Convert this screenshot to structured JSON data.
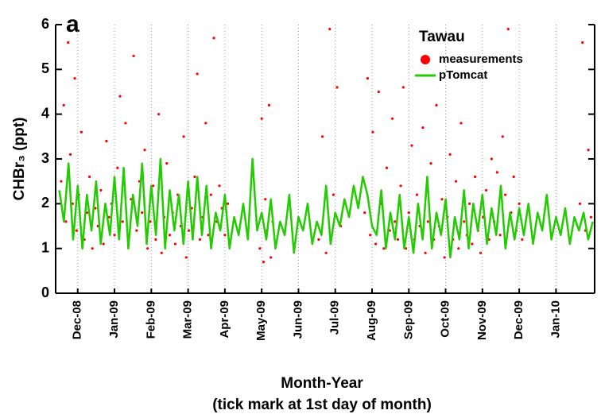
{
  "chart_data": {
    "type": "scatter",
    "panel_label": "a",
    "x_label": "Month-Year",
    "x_label_note": "(tick mark at 1st day of month)",
    "y_label": "CHBr₃ (ppt)",
    "legend_title": "Tawau",
    "legend": "upper right",
    "grid": true,
    "xlim": [
      0.4,
      15.05
    ],
    "ylim": [
      0,
      6
    ],
    "yticks": [
      0,
      1,
      2,
      3,
      4,
      5,
      6
    ],
    "xticks": [
      {
        "value": 1,
        "label": "Dec-08"
      },
      {
        "value": 2,
        "label": "Jan-09"
      },
      {
        "value": 3,
        "label": "Feb-09"
      },
      {
        "value": 4,
        "label": "Mar-09"
      },
      {
        "value": 5,
        "label": "Apr-09"
      },
      {
        "value": 6,
        "label": "May-09"
      },
      {
        "value": 7,
        "label": "Jun-09"
      },
      {
        "value": 8,
        "label": "Jul-09"
      },
      {
        "value": 9,
        "label": "Aug-09"
      },
      {
        "value": 10,
        "label": "Sep-09"
      },
      {
        "value": 11,
        "label": "Oct-09"
      },
      {
        "value": 12,
        "label": "Nov-09"
      },
      {
        "value": 13,
        "label": "Dec-09"
      },
      {
        "value": 14,
        "label": "Jan-10"
      }
    ],
    "series": [
      {
        "name": "measurements",
        "type": "scatter",
        "color": "#ff0000",
        "x": [
          0.55,
          0.62,
          0.68,
          0.74,
          0.8,
          0.86,
          0.92,
          0.97,
          1.03,
          1.1,
          1.18,
          1.25,
          1.32,
          1.4,
          1.48,
          1.55,
          1.63,
          1.7,
          1.78,
          1.85,
          1.92,
          2.0,
          2.08,
          2.15,
          2.22,
          2.3,
          2.38,
          2.45,
          2.52,
          2.6,
          2.68,
          2.75,
          2.82,
          2.9,
          2.97,
          3.05,
          3.12,
          3.2,
          3.28,
          3.35,
          3.42,
          3.5,
          3.58,
          3.65,
          3.72,
          3.8,
          3.88,
          3.95,
          4.02,
          4.1,
          4.18,
          4.25,
          4.32,
          4.4,
          4.48,
          4.55,
          4.62,
          4.7,
          4.78,
          4.85,
          4.92,
          5.0,
          5.08,
          5.95,
          6.0,
          6.05,
          6.1,
          6.15,
          6.2,
          6.25,
          6.3,
          7.55,
          7.65,
          7.75,
          7.85,
          7.95,
          8.05,
          8.15,
          8.8,
          8.88,
          8.95,
          9.02,
          9.1,
          9.18,
          9.25,
          9.32,
          9.4,
          9.48,
          9.55,
          9.62,
          9.7,
          9.78,
          9.85,
          9.92,
          10.0,
          10.08,
          10.15,
          10.22,
          10.3,
          10.38,
          10.45,
          10.52,
          10.6,
          10.68,
          10.75,
          10.82,
          10.9,
          10.97,
          11.05,
          11.12,
          11.2,
          11.28,
          11.35,
          11.42,
          11.5,
          11.58,
          11.65,
          11.72,
          11.8,
          11.88,
          11.95,
          12.02,
          12.1,
          12.18,
          12.25,
          12.32,
          12.4,
          12.48,
          12.55,
          12.62,
          12.7,
          12.78,
          12.85,
          12.92,
          13.0,
          13.08,
          14.65,
          14.72,
          14.8,
          14.88,
          14.95
        ],
        "values": [
          2.5,
          4.2,
          1.6,
          5.6,
          3.1,
          2.0,
          4.8,
          1.4,
          2.2,
          3.6,
          1.2,
          1.8,
          2.6,
          1.0,
          1.9,
          1.5,
          2.3,
          1.1,
          3.4,
          1.7,
          2.0,
          1.3,
          2.8,
          4.4,
          1.6,
          3.8,
          1.2,
          2.1,
          5.3,
          1.4,
          2.5,
          1.8,
          3.2,
          1.0,
          1.6,
          2.4,
          1.2,
          4.0,
          0.9,
          1.7,
          2.9,
          1.3,
          1.8,
          1.1,
          2.2,
          1.5,
          3.5,
          0.8,
          1.4,
          1.9,
          2.6,
          4.9,
          1.2,
          1.7,
          3.8,
          1.3,
          2.2,
          5.7,
          1.6,
          2.4,
          1.9,
          1.3,
          2.0,
          1.0,
          3.9,
          0.7,
          2.1,
          1.4,
          4.2,
          0.8,
          1.6,
          1.2,
          3.5,
          0.9,
          5.9,
          2.2,
          4.6,
          1.5,
          1.8,
          4.8,
          1.3,
          3.6,
          1.1,
          4.5,
          2.0,
          1.0,
          2.8,
          1.4,
          3.9,
          1.6,
          1.2,
          2.4,
          4.6,
          1.0,
          1.8,
          3.3,
          1.2,
          2.2,
          1.5,
          3.7,
          0.9,
          1.6,
          2.9,
          1.2,
          4.2,
          1.5,
          2.1,
          0.8,
          1.7,
          3.1,
          1.2,
          2.5,
          1.0,
          3.8,
          1.6,
          1.3,
          2.0,
          1.1,
          2.6,
          1.4,
          0.9,
          1.7,
          2.3,
          1.2,
          3.0,
          1.6,
          2.7,
          1.3,
          3.5,
          2.2,
          5.9,
          1.8,
          2.6,
          1.4,
          2.0,
          1.2,
          2.0,
          5.6,
          1.4,
          3.2,
          1.7
        ]
      },
      {
        "name": "pTomcat",
        "type": "line",
        "color": "#22cc00",
        "x": [
          0.5,
          0.625,
          0.75,
          0.875,
          1,
          1.125,
          1.25,
          1.375,
          1.5,
          1.625,
          1.75,
          1.875,
          2,
          2.125,
          2.25,
          2.375,
          2.5,
          2.625,
          2.75,
          2.875,
          3,
          3.125,
          3.25,
          3.375,
          3.5,
          3.625,
          3.75,
          3.875,
          4,
          4.125,
          4.25,
          4.375,
          4.5,
          4.625,
          4.75,
          4.875,
          5,
          5.125,
          5.25,
          5.375,
          5.5,
          5.625,
          5.75,
          5.875,
          6,
          6.125,
          6.25,
          6.375,
          6.5,
          6.625,
          6.75,
          6.875,
          7,
          7.125,
          7.25,
          7.375,
          7.5,
          7.625,
          7.75,
          7.875,
          8,
          8.125,
          8.25,
          8.375,
          8.5,
          8.625,
          8.75,
          8.875,
          9,
          9.125,
          9.25,
          9.375,
          9.5,
          9.625,
          9.75,
          9.875,
          10,
          10.125,
          10.25,
          10.375,
          10.5,
          10.625,
          10.75,
          10.875,
          11,
          11.125,
          11.25,
          11.375,
          11.5,
          11.625,
          11.75,
          11.875,
          12,
          12.125,
          12.25,
          12.375,
          12.5,
          12.625,
          12.75,
          12.875,
          13,
          13.125,
          13.25,
          13.375,
          13.5,
          13.625,
          13.75,
          13.875,
          14,
          14.125,
          14.25,
          14.375,
          14.5,
          14.625,
          14.75,
          14.875,
          15
        ],
        "values": [
          2.3,
          1.6,
          2.9,
          1.2,
          2.4,
          1.0,
          2.2,
          1.4,
          2.5,
          1.1,
          2.0,
          1.3,
          2.6,
          1.2,
          2.8,
          1.0,
          2.2,
          1.5,
          2.9,
          1.1,
          2.4,
          1.3,
          3.0,
          1.0,
          2.3,
          1.4,
          2.2,
          1.1,
          2.5,
          1.2,
          2.6,
          1.3,
          2.4,
          1.0,
          1.8,
          1.4,
          2.2,
          1.0,
          1.7,
          1.3,
          2.0,
          1.2,
          3.0,
          1.4,
          1.8,
          1.2,
          2.1,
          1.0,
          1.6,
          1.3,
          2.2,
          0.9,
          1.7,
          1.4,
          2.0,
          1.1,
          1.6,
          1.3,
          2.4,
          1.1,
          1.8,
          1.5,
          2.1,
          1.7,
          2.4,
          1.9,
          2.6,
          2.2,
          1.5,
          1.3,
          2.3,
          1.0,
          1.8,
          1.2,
          2.2,
          1.0,
          1.7,
          0.9,
          2.0,
          1.2,
          2.6,
          1.0,
          1.8,
          1.3,
          2.1,
          0.8,
          1.7,
          1.2,
          2.3,
          1.0,
          2.0,
          1.4,
          2.2,
          1.1,
          1.9,
          1.3,
          2.4,
          1.0,
          1.8,
          1.2,
          1.9,
          1.3,
          2.0,
          1.1,
          1.8,
          1.4,
          2.2,
          1.2,
          1.7,
          1.3,
          1.9,
          1.1,
          1.7,
          1.4,
          1.8,
          1.2,
          1.6
        ]
      }
    ]
  }
}
